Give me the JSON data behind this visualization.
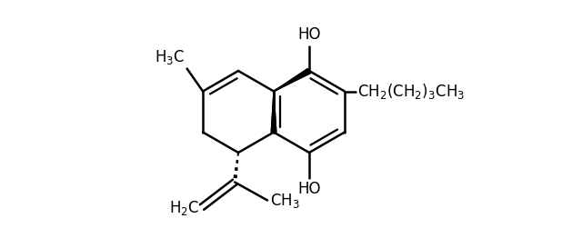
{
  "bg_color": "#ffffff",
  "line_color": "#000000",
  "line_width": 1.8,
  "fig_width": 6.4,
  "fig_height": 2.73,
  "dpi": 100
}
